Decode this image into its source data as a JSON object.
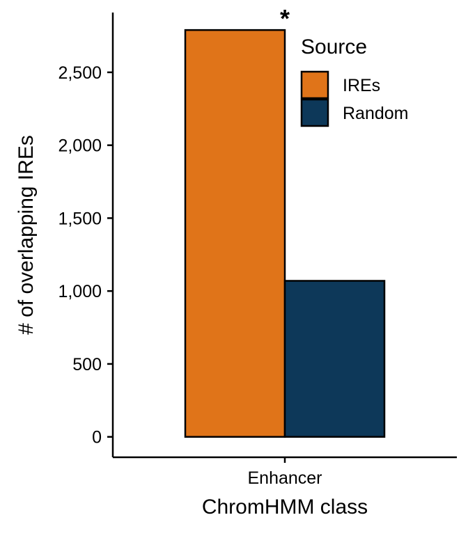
{
  "chart_data": {
    "type": "bar",
    "categories": [
      "Enhancer"
    ],
    "series": [
      {
        "name": "IREs",
        "values": [
          2790
        ],
        "color": "#e07419"
      },
      {
        "name": "Random",
        "values": [
          1070
        ],
        "color": "#0d3859"
      }
    ],
    "xlabel": "ChromHMM class",
    "ylabel": "# of overlapping IREs",
    "ylim": [
      -140,
      2910
    ],
    "yticks": [
      0,
      500,
      1000,
      1500,
      2000,
      2500
    ],
    "ytick_labels": [
      "0",
      "500",
      "1,000",
      "1,500",
      "2,000",
      "2,500"
    ],
    "legend": {
      "title": "Source",
      "position": "top-right",
      "entries": [
        "IREs",
        "Random"
      ]
    },
    "annotations": [
      {
        "text": "*",
        "series": "IREs",
        "category": "Enhancer"
      }
    ],
    "grid": false
  }
}
